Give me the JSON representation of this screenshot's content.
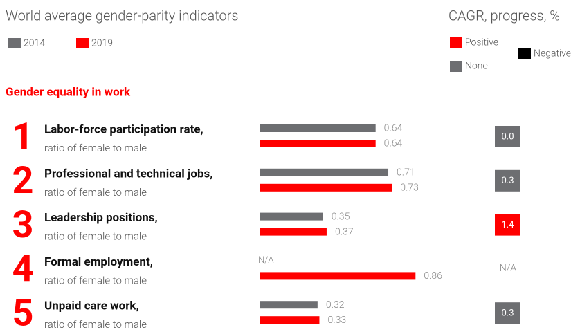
{
  "chart_data": {
    "type": "bar",
    "title": "World average gender-parity indicators",
    "section": "Gender equality in work",
    "row_numbers": [
      1,
      2,
      3,
      4,
      5
    ],
    "categories": [
      "Labor-force participation rate,",
      "Professional and technical jobs,",
      "Leadership positions,",
      "Formal employment,",
      "Unpaid care work,"
    ],
    "subtitles": [
      "ratio of female to male",
      "ratio of female to male",
      "ratio of female to male",
      "ratio of female to male",
      "ratio of female to male"
    ],
    "series": [
      {
        "name": "2014",
        "color": "#6d6e71",
        "values": [
          0.64,
          0.71,
          0.35,
          null,
          0.32
        ],
        "value_labels": [
          "0.64",
          "0.71",
          "0.35",
          "N/A",
          "0.32"
        ]
      },
      {
        "name": "2019",
        "color": "#ff0000",
        "values": [
          0.64,
          0.73,
          0.37,
          0.86,
          0.33
        ]
      }
    ],
    "cagr": {
      "title": "CAGR, progress, %",
      "legend": [
        {
          "name": "Positive",
          "color": "#ff0000"
        },
        {
          "name": "Negative",
          "color": "#000000"
        },
        {
          "name": "None",
          "color": "#6d6e71"
        }
      ],
      "values": [
        0.0,
        0.3,
        1.4,
        null,
        0.3
      ],
      "value_labels": [
        "0.0",
        "0.3",
        "1.4",
        "N/A",
        "0.3"
      ],
      "status": [
        "None",
        "None",
        "Positive",
        null,
        "None"
      ]
    }
  }
}
